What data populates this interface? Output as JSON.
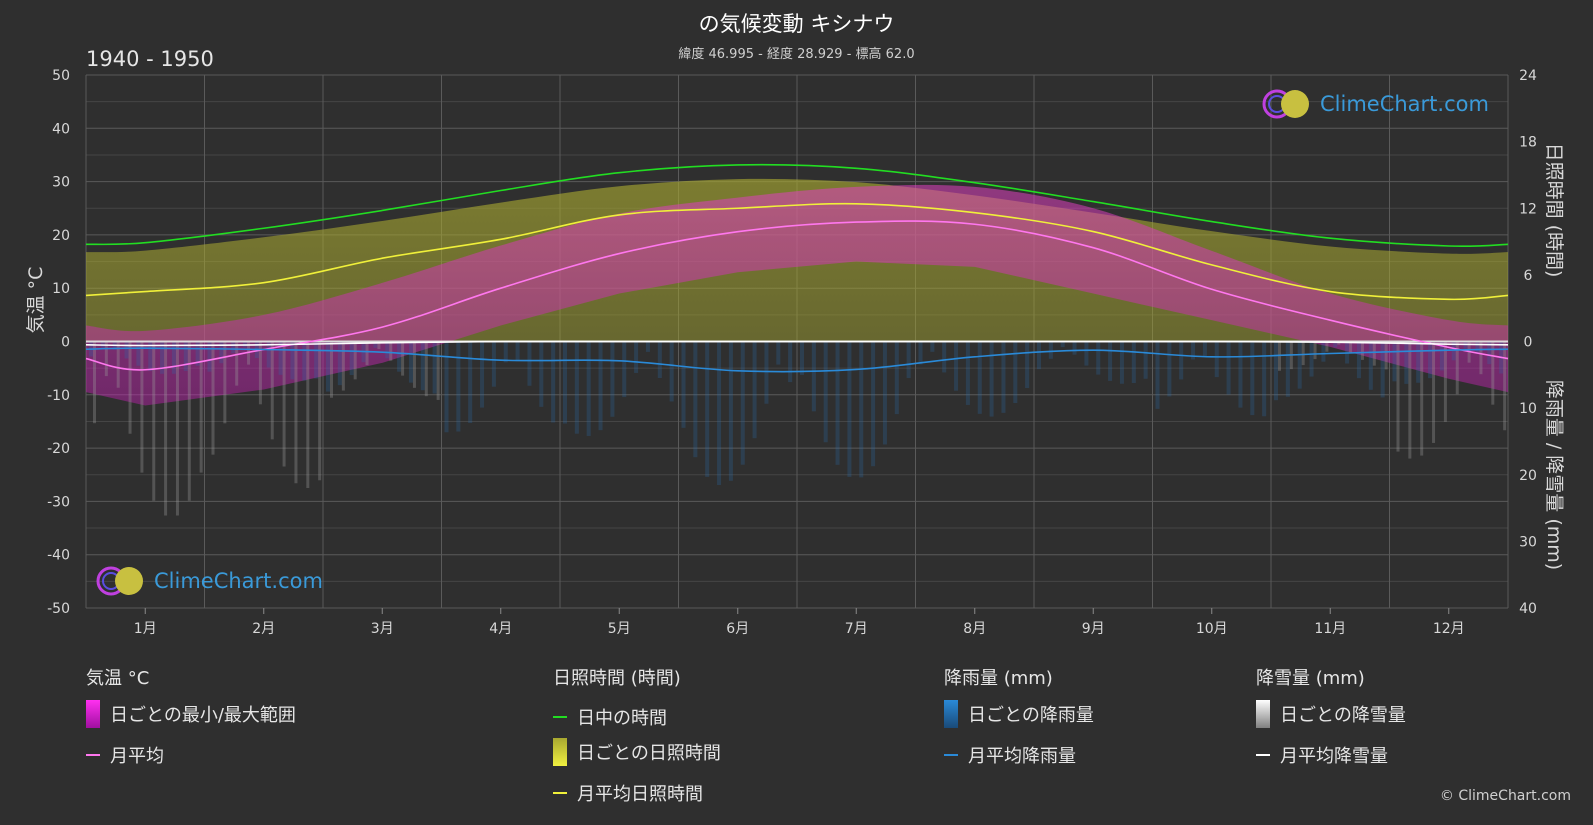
{
  "header": {
    "title": "の気候変動 キシナウ",
    "subtitle": "緯度 46.995 - 経度 28.929 - 標高 62.0",
    "period": "1940 - 1950"
  },
  "logo": {
    "text": "ClimeChart.com"
  },
  "copyright": "© ClimeChart.com",
  "colors": {
    "background": "#2f2f2f",
    "daylight": "#22dd22",
    "sunshine_line": "#f0f03a",
    "temp_avg": "#ff77ee",
    "temp_range": "#e020d0",
    "rain": "#2a8ad8",
    "snow": "#ffffff"
  },
  "chart_data": {
    "type": "line",
    "months": [
      "1月",
      "2月",
      "3月",
      "4月",
      "5月",
      "6月",
      "7月",
      "8月",
      "9月",
      "10月",
      "11月",
      "12月"
    ],
    "left_axis": {
      "label": "気温 °C",
      "range": [
        -50,
        50
      ],
      "ticks": [
        "50",
        "40",
        "30",
        "20",
        "10",
        "0",
        "-10",
        "-20",
        "-30",
        "-40",
        "-50"
      ]
    },
    "right_axis_top": {
      "label": "日照時間 (時間)",
      "range": [
        0,
        24
      ],
      "ticks": [
        "24",
        "18",
        "12",
        "6",
        "0"
      ]
    },
    "right_axis_bottom": {
      "label": "降雨量 / 降雪量 (mm)",
      "range": [
        0,
        40
      ],
      "ticks": [
        "10",
        "20",
        "30",
        "40"
      ]
    },
    "grid": true,
    "series": [
      {
        "name": "日中の時間",
        "unit": "hours",
        "values": [
          8.9,
          10.2,
          11.8,
          13.6,
          15.2,
          15.9,
          15.6,
          14.3,
          12.6,
          10.8,
          9.3,
          8.6
        ]
      },
      {
        "name": "月平均日照時間",
        "unit": "hours",
        "values": [
          4.5,
          5.3,
          7.5,
          9.2,
          11.4,
          12.0,
          12.4,
          11.6,
          9.9,
          6.9,
          4.5,
          3.8
        ]
      },
      {
        "name": "月平均",
        "unit": "°C",
        "values": [
          -5.3,
          -1.5,
          2.7,
          10.0,
          16.5,
          20.6,
          22.4,
          22.0,
          17.6,
          9.8,
          4.0,
          -1.1
        ]
      },
      {
        "name": "月平均降雨量",
        "unit": "mm",
        "values": [
          1.0,
          1.2,
          1.6,
          2.8,
          2.9,
          4.4,
          4.2,
          2.3,
          1.3,
          2.3,
          1.8,
          1.3
        ]
      },
      {
        "name": "月平均降雪量",
        "unit": "mm",
        "values": [
          0.6,
          0.5,
          0.2,
          0.0,
          0.0,
          0.0,
          0.0,
          0.0,
          0.0,
          0.0,
          0.1,
          0.4
        ]
      }
    ],
    "temp_range": {
      "name": "日ごとの最小/最大範囲",
      "min": [
        -12,
        -9,
        -4,
        3,
        9,
        13,
        15,
        14,
        9,
        4,
        -1,
        -7
      ],
      "max": [
        2,
        5,
        11,
        18,
        24,
        27,
        29,
        29,
        25,
        17,
        9,
        4
      ]
    }
  },
  "legend": {
    "temperature": {
      "title": "気温 °C",
      "items": [
        "日ごとの最小/最大範囲",
        "月平均"
      ]
    },
    "sunshine": {
      "title": "日照時間 (時間)",
      "items": [
        "日中の時間",
        "日ごとの日照時間",
        "月平均日照時間"
      ]
    },
    "rain": {
      "title": "降雨量 (mm)",
      "items": [
        "日ごとの降雨量",
        "月平均降雨量"
      ]
    },
    "snow": {
      "title": "降雪量 (mm)",
      "items": [
        "日ごとの降雪量",
        "月平均降雪量"
      ]
    }
  }
}
